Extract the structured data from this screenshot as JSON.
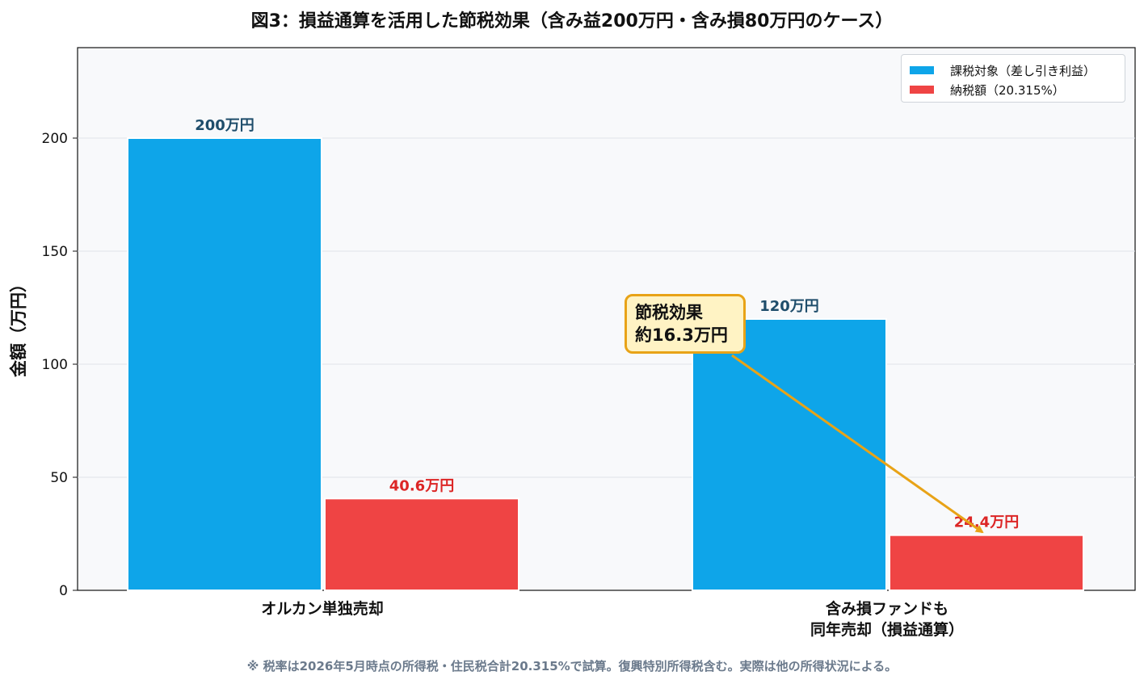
{
  "title": "図3：損益通算を活用した節税効果（含み益200万円・含み損80万円のケース）",
  "footnote": "※ 税率は2026年5月時点の所得税・住民税合計20.315%で試算。復興特別所得税含む。実際は他の所得状況による。",
  "callout": {
    "line1": "節税効果",
    "line2": "約16.3万円"
  },
  "colors": {
    "taxable": "#0ea5e9",
    "tax": "#ef4444",
    "taxable_label": "#1e4d6b",
    "tax_label": "#dc2626",
    "callout_border": "#e8a317",
    "callout_fill": "#fff3c4",
    "plot_bg": "#f8f9fb"
  },
  "chart_data": {
    "type": "bar",
    "categories": [
      "オルカン単独売却",
      "含み損ファンドも\n同年売却（損益通算）"
    ],
    "category_lines": [
      [
        "オルカン単独売却"
      ],
      [
        "含み損ファンドも",
        "同年売却（損益通算）"
      ]
    ],
    "series": [
      {
        "name": "課税対象（差し引き利益）",
        "values": [
          200,
          120
        ],
        "labels": [
          "200万円",
          "120万円"
        ]
      },
      {
        "name": "納税額（20.315%）",
        "values": [
          40.6,
          24.4
        ],
        "labels": [
          "40.6万円",
          "24.4万円"
        ]
      }
    ],
    "ylabel": "金額（万円）",
    "xlabel": "",
    "ylim": [
      0,
      240
    ],
    "yticks": [
      0,
      50,
      100,
      150,
      200
    ],
    "grid": true,
    "legend_position": "top-right"
  }
}
